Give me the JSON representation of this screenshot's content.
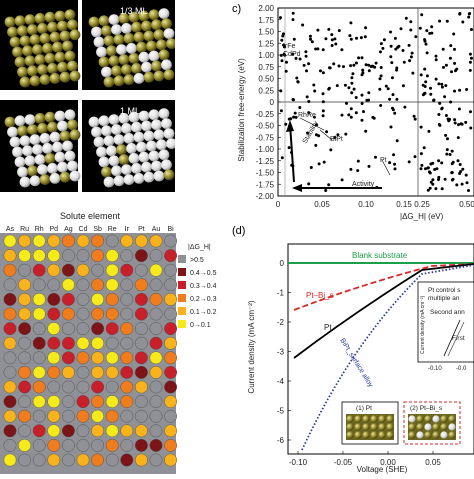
{
  "panel_a": {
    "coverage_labels": [
      "1/3 ML",
      "1 ML"
    ]
  },
  "panel_b": {
    "title": "Solute element",
    "columns": [
      "As",
      "Ru",
      "Rh",
      "Pd",
      "Ag",
      "Cd",
      "Sb",
      "Re",
      "Ir",
      "Pt",
      "Au",
      "Bi"
    ],
    "legend_title": "|ΔG_H|",
    "legend_items": [
      ">0.5",
      "0.4→0.5",
      "0.3→0.4",
      "0.2→0.3",
      "0.1→0.2",
      "0→0.1"
    ],
    "legend_colors": [
      "#8f9197",
      "#7d1418",
      "#c8202a",
      "#ef7d1e",
      "#f7b21c",
      "#f6ea1a"
    ]
  },
  "panel_c": {
    "label": "c)",
    "ylabel": "Stabilization free-energy (eV)",
    "xlabel": "|ΔG_H| (eV)",
    "yticks": [
      "2.00",
      "1.75",
      "1.50",
      "1.25",
      "1.00",
      "0.75",
      "0.50",
      "0.25",
      "0",
      "-0.25",
      "-0.50",
      "-0.75",
      "-1.00",
      "-1.25",
      "-1.50",
      "-1.75",
      "-2.00"
    ],
    "xticks_left": [
      "0",
      "0.05",
      "0.10",
      "0.15"
    ],
    "xticks_right": [
      "0.25",
      "0.50"
    ],
    "annotations": {
      "irfe": "IrFe",
      "cdpd": "CdPd",
      "rhre": "RhRe",
      "bipt": "BiPt",
      "pt": "Pt",
      "stability": "Stability",
      "activity": "Activity"
    }
  },
  "panel_d": {
    "label": "(d)",
    "ylabel": "Current density (mA cm⁻²)",
    "xlabel": "Voltage (SHE)",
    "xticks": [
      "-0.10",
      "-0.05",
      "0.00",
      "0.05",
      "0.10"
    ],
    "yticks": [
      "0",
      "-1",
      "-2",
      "-3",
      "-4",
      "-5",
      "-6"
    ],
    "series_labels": {
      "blank": "Blank substrate",
      "ptbi": "Pt–Bi_s",
      "pt": "Pt",
      "bipt": "BiPt_surface alloy"
    },
    "inset": {
      "text1": "Pt control s",
      "text2": "multiple an",
      "text3": "Second ann",
      "text4": "First",
      "ylabel": "Current density (mA cm⁻²)",
      "xticks": [
        "-0.10",
        "-0.0"
      ]
    },
    "thumbs": [
      "(1) Pt",
      "(2) Pt–Bi_s"
    ],
    "colors": {
      "blank": "#1aa04a",
      "ptbi": "#d8282a",
      "pt": "#000000",
      "bipt": "#2a3a9c"
    }
  }
}
